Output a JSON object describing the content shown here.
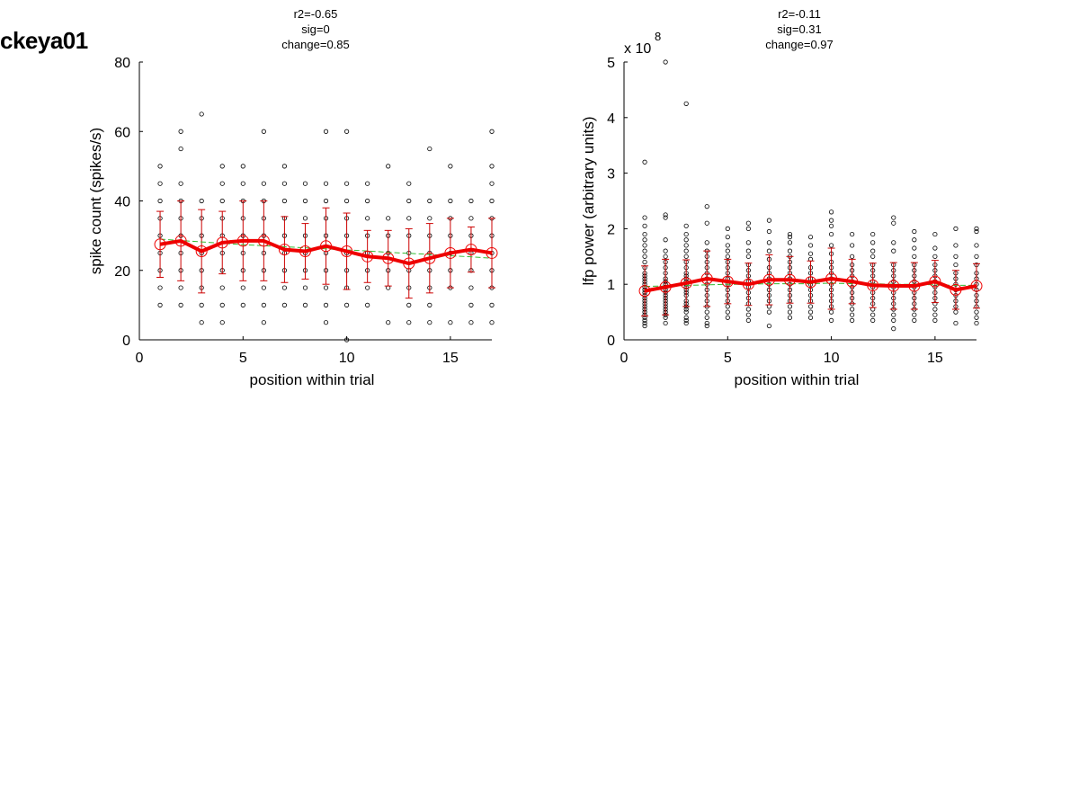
{
  "page": {
    "title": "ckeya01"
  },
  "chart_data": [
    {
      "type": "scatter",
      "id": "spike",
      "stats": [
        "r2=-0.65",
        "sig=0",
        "change=0.85"
      ],
      "xlabel": "position within trial",
      "ylabel": "spike count (spikes/s)",
      "exponent_label": "",
      "xlim": [
        0,
        17
      ],
      "ylim": [
        0,
        80
      ],
      "xticks": [
        0,
        5,
        10,
        15
      ],
      "yticks": [
        0,
        20,
        40,
        60,
        80
      ],
      "x": [
        1,
        2,
        3,
        4,
        5,
        6,
        7,
        8,
        9,
        10,
        11,
        12,
        13,
        14,
        15,
        16,
        17
      ],
      "mean": [
        27.5,
        28.5,
        25.5,
        28,
        28.5,
        28.5,
        26,
        25.5,
        27,
        25.5,
        24,
        23.5,
        22,
        23.5,
        25,
        26,
        25
      ],
      "error": [
        9.5,
        11.5,
        12,
        9,
        11.5,
        11.5,
        9.5,
        8,
        11,
        11,
        7.5,
        8,
        10,
        10,
        10,
        6.5,
        10
      ],
      "fit": [
        29,
        28.6,
        28.2,
        27.8,
        27.4,
        27.1,
        26.8,
        26.5,
        26.2,
        25.9,
        25.6,
        25.2,
        24.9,
        24.6,
        24.2,
        23.9,
        23.5
      ],
      "points": [
        [
          1,
          [
            10,
            15,
            20,
            25,
            30,
            35,
            40,
            45,
            50
          ]
        ],
        [
          2,
          [
            10,
            15,
            20,
            25,
            30,
            35,
            40,
            45,
            55,
            60
          ]
        ],
        [
          3,
          [
            5,
            10,
            15,
            20,
            25,
            30,
            35,
            40,
            65
          ]
        ],
        [
          4,
          [
            5,
            10,
            15,
            20,
            25,
            30,
            35,
            40,
            45,
            50
          ]
        ],
        [
          5,
          [
            10,
            15,
            20,
            25,
            30,
            35,
            40,
            45,
            50
          ]
        ],
        [
          6,
          [
            5,
            10,
            15,
            20,
            25,
            30,
            35,
            40,
            45,
            60
          ]
        ],
        [
          7,
          [
            10,
            15,
            20,
            25,
            30,
            35,
            40,
            45,
            50
          ]
        ],
        [
          8,
          [
            10,
            15,
            20,
            25,
            30,
            35,
            40,
            45
          ]
        ],
        [
          9,
          [
            5,
            10,
            15,
            20,
            25,
            30,
            35,
            40,
            45,
            60
          ]
        ],
        [
          10,
          [
            0,
            10,
            15,
            20,
            25,
            30,
            35,
            40,
            45,
            60
          ]
        ],
        [
          11,
          [
            10,
            15,
            20,
            25,
            30,
            35,
            40,
            45
          ]
        ],
        [
          12,
          [
            5,
            15,
            20,
            25,
            30,
            35,
            50
          ]
        ],
        [
          13,
          [
            5,
            10,
            15,
            20,
            25,
            30,
            35,
            40,
            45
          ]
        ],
        [
          14,
          [
            5,
            10,
            15,
            20,
            25,
            30,
            35,
            40,
            55
          ]
        ],
        [
          15,
          [
            5,
            15,
            20,
            25,
            30,
            35,
            40,
            50
          ]
        ],
        [
          16,
          [
            5,
            10,
            15,
            20,
            25,
            30,
            35,
            40
          ]
        ],
        [
          17,
          [
            5,
            10,
            15,
            20,
            25,
            30,
            35,
            40,
            45,
            50,
            60
          ]
        ]
      ]
    },
    {
      "type": "scatter",
      "id": "lfp",
      "stats": [
        "r2=-0.11",
        "sig=0.31",
        "change=0.97"
      ],
      "xlabel": "position within trial",
      "ylabel": "lfp power (arbitrary units)",
      "exponent_label": "x 10",
      "exponent_sup": "8",
      "xlim": [
        0,
        17
      ],
      "ylim": [
        0,
        5
      ],
      "xticks": [
        0,
        5,
        10,
        15
      ],
      "yticks": [
        0,
        1,
        2,
        3,
        4,
        5
      ],
      "x": [
        1,
        2,
        3,
        4,
        5,
        6,
        7,
        8,
        9,
        10,
        11,
        12,
        13,
        14,
        15,
        16,
        17
      ],
      "mean": [
        0.88,
        0.95,
        1.02,
        1.1,
        1.05,
        1.0,
        1.08,
        1.08,
        1.04,
        1.1,
        1.05,
        0.98,
        0.97,
        0.97,
        1.05,
        0.9,
        0.97
      ],
      "error": [
        0.45,
        0.5,
        0.42,
        0.5,
        0.4,
        0.38,
        0.45,
        0.42,
        0.38,
        0.55,
        0.4,
        0.4,
        0.42,
        0.42,
        0.38,
        0.35,
        0.4
      ],
      "fit": [
        0.96,
        0.97,
        0.98,
        0.99,
        1.0,
        1.0,
        1.01,
        1.01,
        1.01,
        1.02,
        1.01,
        1.01,
        1.0,
        1.0,
        0.99,
        0.98,
        0.98
      ],
      "points": [
        [
          1,
          [
            0.25,
            0.3,
            0.35,
            0.4,
            0.45,
            0.5,
            0.55,
            0.6,
            0.65,
            0.7,
            0.75,
            0.8,
            0.85,
            0.9,
            0.95,
            1.0,
            1.05,
            1.1,
            1.15,
            1.2,
            1.3,
            1.4,
            1.5,
            1.6,
            1.7,
            1.8,
            1.9,
            2.05,
            2.2,
            3.2
          ]
        ],
        [
          2,
          [
            0.3,
            0.4,
            0.45,
            0.5,
            0.55,
            0.6,
            0.65,
            0.7,
            0.75,
            0.8,
            0.85,
            0.9,
            0.95,
            1.0,
            1.05,
            1.1,
            1.2,
            1.3,
            1.4,
            1.5,
            1.6,
            1.8,
            2.2,
            2.25,
            5.0
          ]
        ],
        [
          3,
          [
            0.3,
            0.35,
            0.4,
            0.5,
            0.55,
            0.6,
            0.65,
            0.7,
            0.8,
            0.85,
            0.9,
            0.95,
            1.0,
            1.05,
            1.1,
            1.15,
            1.2,
            1.3,
            1.4,
            1.5,
            1.6,
            1.7,
            1.8,
            1.9,
            2.05,
            4.25
          ]
        ],
        [
          4,
          [
            0.25,
            0.3,
            0.4,
            0.5,
            0.6,
            0.7,
            0.8,
            0.9,
            1.0,
            1.1,
            1.2,
            1.3,
            1.4,
            1.5,
            1.6,
            1.75,
            2.1,
            2.4
          ]
        ],
        [
          5,
          [
            0.4,
            0.5,
            0.6,
            0.7,
            0.8,
            0.9,
            1.0,
            1.1,
            1.2,
            1.3,
            1.4,
            1.5,
            1.6,
            1.7,
            1.85,
            2.0
          ]
        ],
        [
          6,
          [
            0.35,
            0.45,
            0.55,
            0.65,
            0.75,
            0.85,
            0.95,
            1.05,
            1.15,
            1.25,
            1.35,
            1.5,
            1.6,
            1.75,
            2.0,
            2.1
          ]
        ],
        [
          7,
          [
            0.25,
            0.5,
            0.6,
            0.7,
            0.8,
            0.9,
            1.0,
            1.1,
            1.2,
            1.3,
            1.45,
            1.6,
            1.75,
            1.95,
            2.15
          ]
        ],
        [
          8,
          [
            0.4,
            0.5,
            0.6,
            0.7,
            0.8,
            0.9,
            1.0,
            1.1,
            1.2,
            1.3,
            1.4,
            1.5,
            1.6,
            1.75,
            1.85,
            1.9
          ]
        ],
        [
          9,
          [
            0.4,
            0.5,
            0.6,
            0.7,
            0.8,
            0.9,
            1.0,
            1.1,
            1.2,
            1.3,
            1.45,
            1.55,
            1.7,
            1.85
          ]
        ],
        [
          10,
          [
            0.35,
            0.5,
            0.6,
            0.7,
            0.8,
            0.9,
            1.0,
            1.1,
            1.2,
            1.3,
            1.4,
            1.55,
            1.7,
            1.9,
            2.05,
            2.15,
            2.3
          ]
        ],
        [
          11,
          [
            0.35,
            0.45,
            0.55,
            0.65,
            0.75,
            0.85,
            0.95,
            1.05,
            1.15,
            1.25,
            1.35,
            1.5,
            1.7,
            1.9
          ]
        ],
        [
          12,
          [
            0.35,
            0.45,
            0.55,
            0.65,
            0.75,
            0.85,
            0.95,
            1.05,
            1.15,
            1.25,
            1.35,
            1.5,
            1.6,
            1.75,
            1.9
          ]
        ],
        [
          13,
          [
            0.2,
            0.35,
            0.45,
            0.55,
            0.65,
            0.75,
            0.85,
            0.95,
            1.05,
            1.15,
            1.25,
            1.35,
            1.6,
            1.75,
            2.1,
            2.2
          ]
        ],
        [
          14,
          [
            0.35,
            0.45,
            0.55,
            0.65,
            0.75,
            0.85,
            0.95,
            1.05,
            1.15,
            1.25,
            1.35,
            1.5,
            1.65,
            1.8,
            1.95
          ]
        ],
        [
          15,
          [
            0.35,
            0.45,
            0.55,
            0.65,
            0.75,
            0.85,
            0.95,
            1.05,
            1.15,
            1.25,
            1.35,
            1.5,
            1.65,
            1.9
          ]
        ],
        [
          16,
          [
            0.3,
            0.5,
            0.6,
            0.7,
            0.8,
            0.9,
            1.0,
            1.1,
            1.2,
            1.35,
            1.5,
            1.7,
            2.0
          ]
        ],
        [
          17,
          [
            0.3,
            0.4,
            0.5,
            0.6,
            0.7,
            0.8,
            0.9,
            1.0,
            1.1,
            1.2,
            1.35,
            1.5,
            1.7,
            1.95,
            2.0
          ]
        ]
      ]
    }
  ]
}
